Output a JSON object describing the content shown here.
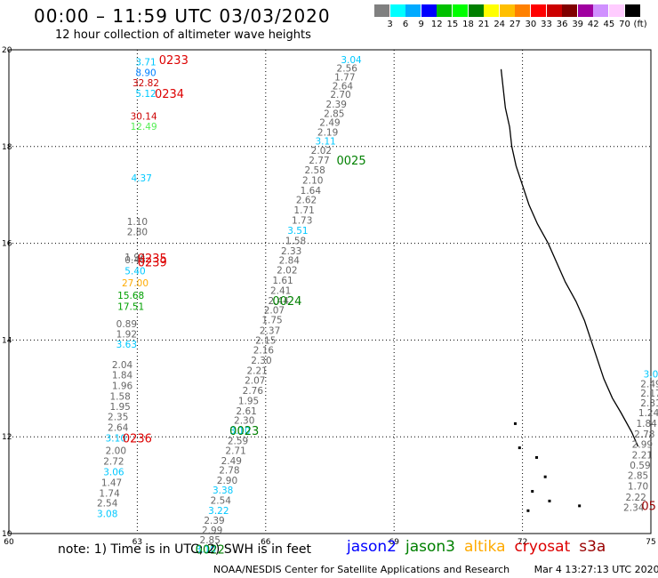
{
  "header": {
    "title": "00:00 – 11:59 UTC 03/03/2020",
    "subtitle": "12 hour collection of altimeter wave heights"
  },
  "colorbar": {
    "colors": [
      "#808080",
      "#00ffff",
      "#00aaff",
      "#0000ff",
      "#00c000",
      "#00ff00",
      "#008000",
      "#ffff00",
      "#ffbf00",
      "#ff8000",
      "#ff0000",
      "#cc0000",
      "#800000",
      "#a000a0",
      "#d090ff",
      "#ffccff",
      "#000000"
    ],
    "labels": [
      "3",
      "6",
      "9",
      "12",
      "15",
      "18",
      "21",
      "24",
      "27",
      "30",
      "33",
      "36",
      "39",
      "42",
      "45",
      "70",
      "(ft)"
    ]
  },
  "chart_data": {
    "type": "scatter",
    "title": "00:00 – 11:59 UTC 03/03/2020",
    "subtitle": "12 hour collection of altimeter wave heights",
    "xlim": [
      60,
      75
    ],
    "ylim": [
      10,
      20
    ],
    "xticks": [
      "60",
      "63",
      "66",
      "69",
      "72",
      "75"
    ],
    "yticks": [
      "10",
      "12",
      "14",
      "16",
      "18",
      "20"
    ],
    "grid": true,
    "unit": "ft",
    "points": [
      {
        "x": 63.2,
        "y": 19.75,
        "text": "3.71",
        "color": "#00c8ff"
      },
      {
        "x": 63.2,
        "y": 19.53,
        "text": "8.90",
        "color": "#0080ff"
      },
      {
        "x": 63.2,
        "y": 19.32,
        "text": "32.82",
        "color": "#cc0000"
      },
      {
        "x": 63.2,
        "y": 19.1,
        "text": "5.12",
        "color": "#00c8ff"
      },
      {
        "x": 63.15,
        "y": 18.63,
        "text": "30.14",
        "color": "#cc0000"
      },
      {
        "x": 63.15,
        "y": 18.42,
        "text": "12.49",
        "color": "#55ee55"
      },
      {
        "x": 63.1,
        "y": 17.35,
        "text": "4.37",
        "color": "#00c8ff"
      },
      {
        "x": 63.0,
        "y": 16.45,
        "text": "1.10",
        "color": "#666666"
      },
      {
        "x": 63.0,
        "y": 16.24,
        "text": "2.80",
        "color": "#666666"
      },
      {
        "x": 62.95,
        "y": 15.72,
        "text": "1.94",
        "color": "#666666"
      },
      {
        "x": 62.95,
        "y": 15.66,
        "text": "0.46",
        "color": "#666666"
      },
      {
        "x": 62.95,
        "y": 15.43,
        "text": "5.40",
        "color": "#00c8ff"
      },
      {
        "x": 62.95,
        "y": 15.18,
        "text": "27.00",
        "color": "#ffaa00"
      },
      {
        "x": 62.85,
        "y": 14.93,
        "text": "15.68",
        "color": "#00a000"
      },
      {
        "x": 62.85,
        "y": 14.7,
        "text": "17.51",
        "color": "#00a000"
      },
      {
        "x": 62.75,
        "y": 14.34,
        "text": "0.89",
        "color": "#666666"
      },
      {
        "x": 62.75,
        "y": 14.13,
        "text": "1.92",
        "color": "#666666"
      },
      {
        "x": 62.75,
        "y": 13.92,
        "text": "3.63",
        "color": "#00c8ff"
      },
      {
        "x": 62.65,
        "y": 13.49,
        "text": "2.04",
        "color": "#666666"
      },
      {
        "x": 62.65,
        "y": 13.28,
        "text": "1.84",
        "color": "#666666"
      },
      {
        "x": 62.65,
        "y": 13.06,
        "text": "1.96",
        "color": "#666666"
      },
      {
        "x": 62.6,
        "y": 12.84,
        "text": "1.58",
        "color": "#666666"
      },
      {
        "x": 62.6,
        "y": 12.63,
        "text": "1.95",
        "color": "#666666"
      },
      {
        "x": 62.55,
        "y": 12.42,
        "text": "2.35",
        "color": "#666666"
      },
      {
        "x": 62.55,
        "y": 12.2,
        "text": "2.64",
        "color": "#666666"
      },
      {
        "x": 62.5,
        "y": 11.98,
        "text": "3.10",
        "color": "#00c8ff"
      },
      {
        "x": 62.5,
        "y": 11.72,
        "text": "2.00",
        "color": "#666666"
      },
      {
        "x": 62.45,
        "y": 11.5,
        "text": "2.72",
        "color": "#666666"
      },
      {
        "x": 62.45,
        "y": 11.28,
        "text": "3.06",
        "color": "#00c8ff"
      },
      {
        "x": 62.4,
        "y": 11.06,
        "text": "1.47",
        "color": "#666666"
      },
      {
        "x": 62.35,
        "y": 10.84,
        "text": "1.74",
        "color": "#666666"
      },
      {
        "x": 62.3,
        "y": 10.63,
        "text": "2.54",
        "color": "#666666"
      },
      {
        "x": 62.3,
        "y": 10.41,
        "text": "3.08",
        "color": "#00c8ff"
      },
      {
        "x": 68.0,
        "y": 19.8,
        "text": "3.04",
        "color": "#00c8ff"
      },
      {
        "x": 67.9,
        "y": 19.62,
        "text": "2.56",
        "color": "#666666"
      },
      {
        "x": 67.85,
        "y": 19.44,
        "text": "1.77",
        "color": "#666666"
      },
      {
        "x": 67.8,
        "y": 19.26,
        "text": "2.64",
        "color": "#666666"
      },
      {
        "x": 67.75,
        "y": 19.08,
        "text": "2.70",
        "color": "#666666"
      },
      {
        "x": 67.65,
        "y": 18.88,
        "text": "2.39",
        "color": "#666666"
      },
      {
        "x": 67.6,
        "y": 18.69,
        "text": "2.85",
        "color": "#666666"
      },
      {
        "x": 67.5,
        "y": 18.5,
        "text": "2.49",
        "color": "#666666"
      },
      {
        "x": 67.45,
        "y": 18.3,
        "text": "2.19",
        "color": "#666666"
      },
      {
        "x": 67.4,
        "y": 18.12,
        "text": "3.11",
        "color": "#00c8ff"
      },
      {
        "x": 67.3,
        "y": 17.92,
        "text": "2.02",
        "color": "#666666"
      },
      {
        "x": 67.25,
        "y": 17.72,
        "text": "2.77",
        "color": "#666666"
      },
      {
        "x": 67.15,
        "y": 17.52,
        "text": "2.58",
        "color": "#666666"
      },
      {
        "x": 67.1,
        "y": 17.31,
        "text": "2.10",
        "color": "#666666"
      },
      {
        "x": 67.05,
        "y": 17.1,
        "text": "1.64",
        "color": "#666666"
      },
      {
        "x": 66.95,
        "y": 16.9,
        "text": "2.62",
        "color": "#666666"
      },
      {
        "x": 66.9,
        "y": 16.69,
        "text": "1.71",
        "color": "#666666"
      },
      {
        "x": 66.85,
        "y": 16.48,
        "text": "1.73",
        "color": "#666666"
      },
      {
        "x": 66.75,
        "y": 16.27,
        "text": "3.51",
        "color": "#00c8ff"
      },
      {
        "x": 66.7,
        "y": 16.06,
        "text": "1.58",
        "color": "#666666"
      },
      {
        "x": 66.6,
        "y": 15.85,
        "text": "2.33",
        "color": "#666666"
      },
      {
        "x": 66.55,
        "y": 15.65,
        "text": "2.84",
        "color": "#666666"
      },
      {
        "x": 66.5,
        "y": 15.45,
        "text": "2.02",
        "color": "#666666"
      },
      {
        "x": 66.4,
        "y": 15.24,
        "text": "1.61",
        "color": "#666666"
      },
      {
        "x": 66.35,
        "y": 15.03,
        "text": "2.41",
        "color": "#666666"
      },
      {
        "x": 66.3,
        "y": 14.82,
        "text": "2.44",
        "color": "#666666"
      },
      {
        "x": 66.2,
        "y": 14.62,
        "text": "2.07",
        "color": "#666666"
      },
      {
        "x": 66.15,
        "y": 14.42,
        "text": "1.75",
        "color": "#666666"
      },
      {
        "x": 66.1,
        "y": 14.2,
        "text": "2.37",
        "color": "#666666"
      },
      {
        "x": 66.0,
        "y": 14.0,
        "text": "2.15",
        "color": "#666666"
      },
      {
        "x": 65.95,
        "y": 13.8,
        "text": "2.16",
        "color": "#666666"
      },
      {
        "x": 65.9,
        "y": 13.58,
        "text": "2.30",
        "color": "#666666"
      },
      {
        "x": 65.8,
        "y": 13.37,
        "text": "2.21",
        "color": "#666666"
      },
      {
        "x": 65.75,
        "y": 13.17,
        "text": "2.07",
        "color": "#666666"
      },
      {
        "x": 65.7,
        "y": 12.96,
        "text": "2.76",
        "color": "#666666"
      },
      {
        "x": 65.6,
        "y": 12.75,
        "text": "1.95",
        "color": "#666666"
      },
      {
        "x": 65.55,
        "y": 12.54,
        "text": "2.61",
        "color": "#666666"
      },
      {
        "x": 65.5,
        "y": 12.34,
        "text": "2.30",
        "color": "#666666"
      },
      {
        "x": 65.4,
        "y": 12.13,
        "text": "3.10",
        "color": "#00c8ff"
      },
      {
        "x": 65.35,
        "y": 11.92,
        "text": "2.59",
        "color": "#666666"
      },
      {
        "x": 65.3,
        "y": 11.72,
        "text": "2.71",
        "color": "#666666"
      },
      {
        "x": 65.2,
        "y": 11.51,
        "text": "2.49",
        "color": "#666666"
      },
      {
        "x": 65.15,
        "y": 11.31,
        "text": "2.78",
        "color": "#666666"
      },
      {
        "x": 65.1,
        "y": 11.1,
        "text": "2.90",
        "color": "#666666"
      },
      {
        "x": 65.0,
        "y": 10.9,
        "text": "3.38",
        "color": "#00c8ff"
      },
      {
        "x": 64.95,
        "y": 10.69,
        "text": "2.54",
        "color": "#666666"
      },
      {
        "x": 64.9,
        "y": 10.48,
        "text": "3.22",
        "color": "#00c8ff"
      },
      {
        "x": 64.8,
        "y": 10.28,
        "text": "2.39",
        "color": "#666666"
      },
      {
        "x": 64.75,
        "y": 10.07,
        "text": "2.99",
        "color": "#666666"
      },
      {
        "x": 64.7,
        "y": 9.87,
        "text": "2.85",
        "color": "#666666"
      },
      {
        "x": 64.6,
        "y": 9.68,
        "text": "3.10",
        "color": "#00c8ff"
      },
      {
        "x": 75.0,
        "y": 13.3,
        "text": "3.0",
        "color": "#00c8ff"
      },
      {
        "x": 75.0,
        "y": 13.1,
        "text": "2.49",
        "color": "#666666"
      },
      {
        "x": 75.0,
        "y": 12.9,
        "text": "2.17",
        "color": "#666666"
      },
      {
        "x": 75.0,
        "y": 12.7,
        "text": "2.31",
        "color": "#666666"
      },
      {
        "x": 74.95,
        "y": 12.5,
        "text": "1.24",
        "color": "#666666"
      },
      {
        "x": 74.9,
        "y": 12.28,
        "text": "1.84",
        "color": "#666666"
      },
      {
        "x": 74.85,
        "y": 12.06,
        "text": "2.78",
        "color": "#666666"
      },
      {
        "x": 74.8,
        "y": 11.85,
        "text": "2.99",
        "color": "#666666"
      },
      {
        "x": 74.8,
        "y": 11.63,
        "text": "2.21",
        "color": "#666666"
      },
      {
        "x": 74.75,
        "y": 11.42,
        "text": "0.59",
        "color": "#666666"
      },
      {
        "x": 74.7,
        "y": 11.2,
        "text": "2.85",
        "color": "#666666"
      },
      {
        "x": 74.7,
        "y": 10.98,
        "text": "1.70",
        "color": "#666666"
      },
      {
        "x": 74.65,
        "y": 10.75,
        "text": "2.22",
        "color": "#666666"
      },
      {
        "x": 74.6,
        "y": 10.54,
        "text": "2.34",
        "color": "#666666"
      }
    ],
    "time_labels": [
      {
        "x": 63.85,
        "y": 19.8,
        "text": "0233",
        "color": "#dd0000"
      },
      {
        "x": 63.75,
        "y": 19.1,
        "text": "0234",
        "color": "#dd0000"
      },
      {
        "x": 63.35,
        "y": 15.7,
        "text": "0235",
        "color": "#dd0000"
      },
      {
        "x": 63.35,
        "y": 15.62,
        "text": "0239",
        "color": "#dd0000"
      },
      {
        "x": 63.0,
        "y": 11.98,
        "text": "0236",
        "color": "#dd0000"
      },
      {
        "x": 68.0,
        "y": 17.72,
        "text": "0025",
        "color": "#008000"
      },
      {
        "x": 66.5,
        "y": 14.82,
        "text": "0024",
        "color": "#008000"
      },
      {
        "x": 65.5,
        "y": 12.13,
        "text": "0023",
        "color": "#008000"
      },
      {
        "x": 64.7,
        "y": 9.68,
        "text": "0022",
        "color": "#008000"
      },
      {
        "x": 74.95,
        "y": 10.58,
        "text": "05",
        "color": "#990000"
      }
    ]
  },
  "footer": {
    "note": "note: 1) Time is in UTC; 2) SWH is in feet",
    "satellites": [
      {
        "name": "jason2",
        "color": "#0000ff"
      },
      {
        "name": "jason3",
        "color": "#008000"
      },
      {
        "name": "altika",
        "color": "#ffaa00"
      },
      {
        "name": "cryosat",
        "color": "#dd0000"
      },
      {
        "name": "s3a",
        "color": "#990000"
      }
    ],
    "credit": "NOAA/NESDIS Center for Satellite Applications and Research",
    "timestamp": "Mar  4 13:27:13 UTC 2020"
  }
}
